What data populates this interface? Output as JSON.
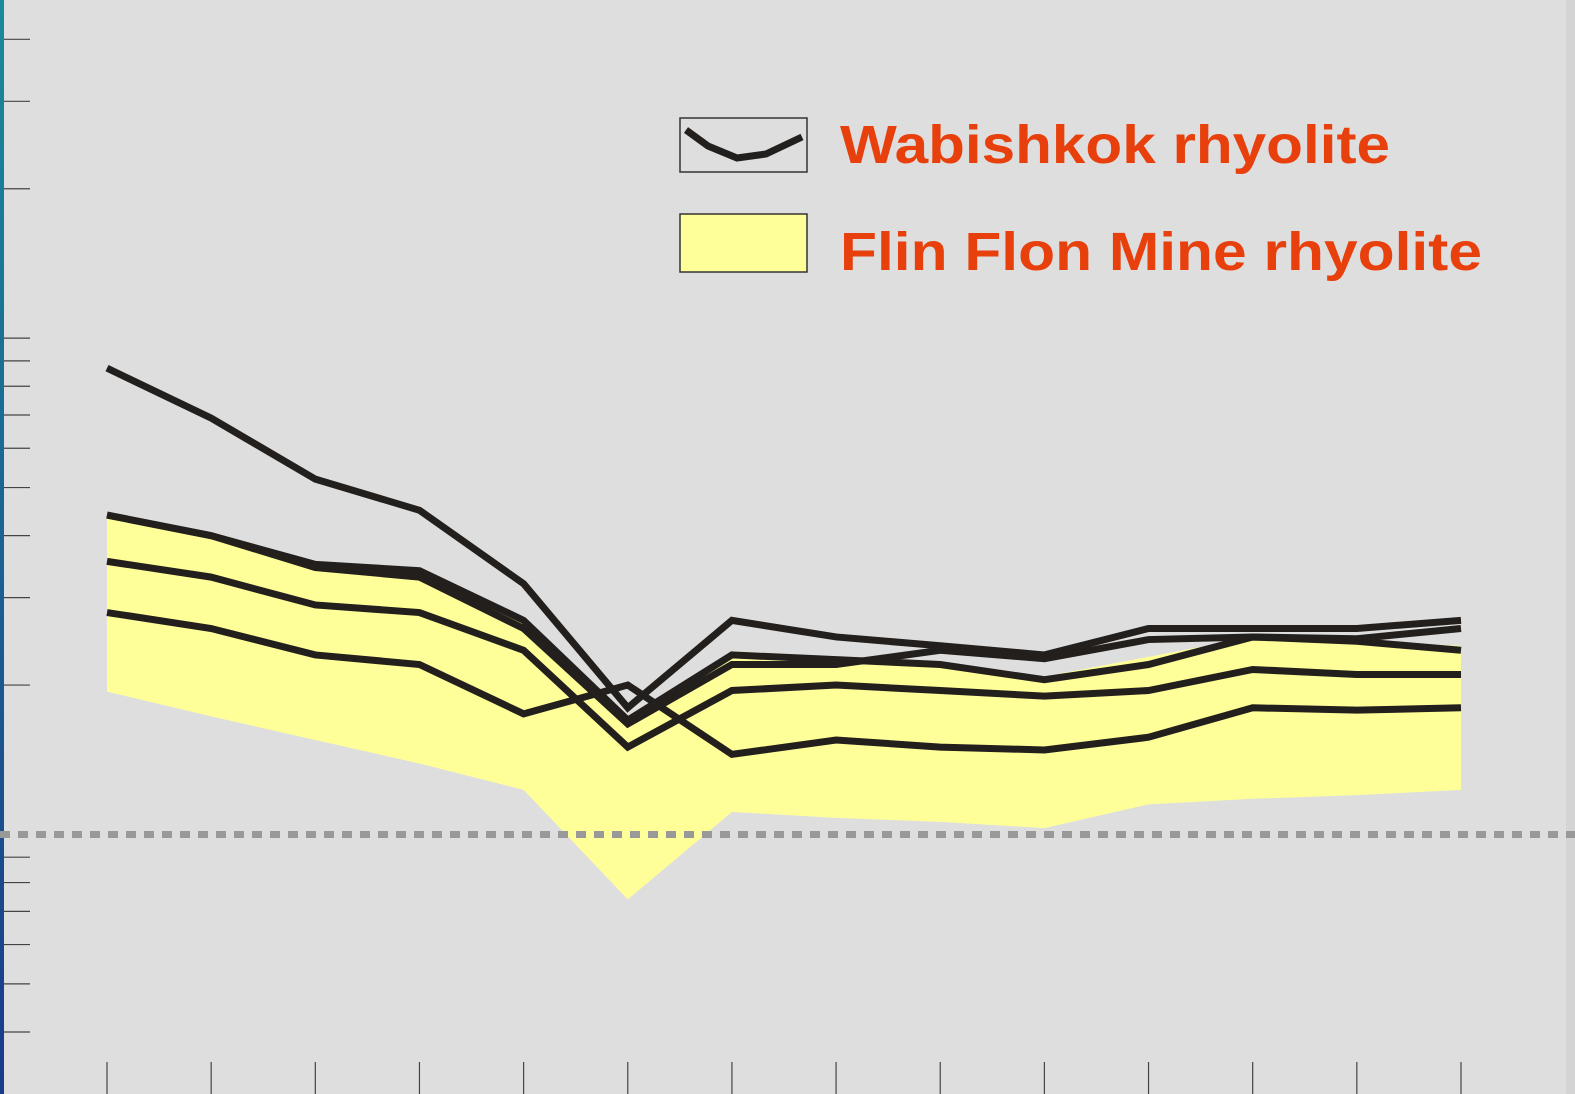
{
  "chart_data": {
    "type": "line",
    "categories": [
      null,
      null,
      null,
      null,
      null,
      null,
      null,
      null,
      null,
      null,
      null,
      null,
      null,
      null
    ],
    "ylim": [
      0.3,
      48
    ],
    "yticks": [
      0.4,
      0.5,
      0.6,
      0.7,
      0.8,
      0.9,
      2,
      3,
      4,
      5,
      6,
      7,
      8,
      9,
      10,
      20,
      30,
      40
    ],
    "log_scale": true,
    "reference_line": 1,
    "series": [
      {
        "name": "Wabishkok rhyolite",
        "color": "#231f1c",
        "samples": [
          [
            8.7,
            6.9,
            5.2,
            4.5,
            3.2,
            1.8,
            2.7,
            2.5,
            2.4,
            2.3,
            2.6,
            2.6,
            2.6,
            2.7
          ],
          [
            4.4,
            4.0,
            3.5,
            3.4,
            2.7,
            1.7,
            2.3,
            2.25,
            2.2,
            2.05,
            2.2,
            2.5,
            2.45,
            2.35
          ],
          [
            3.55,
            3.3,
            2.9,
            2.8,
            2.35,
            1.5,
            1.95,
            2.0,
            1.95,
            1.9,
            1.95,
            2.15,
            2.1,
            2.1
          ],
          [
            2.8,
            2.6,
            2.3,
            2.2,
            1.75,
            2.0,
            1.45,
            1.55,
            1.5,
            1.48,
            1.57,
            1.8,
            1.78,
            1.8
          ],
          [
            4.4,
            4.0,
            3.45,
            3.3,
            2.6,
            1.67,
            2.2,
            2.2,
            2.35,
            2.26,
            2.47,
            2.5,
            2.48,
            2.6
          ]
        ]
      },
      {
        "name": "Flin Flon Mine rhyolite",
        "color": "#ffff99",
        "upper": [
          4.4,
          4.0,
          3.5,
          3.36,
          2.66,
          1.67,
          2.34,
          2.28,
          2.2,
          2.08,
          2.28,
          2.5,
          2.45,
          2.4
        ],
        "lower": [
          1.94,
          1.73,
          1.55,
          1.39,
          1.23,
          0.74,
          1.11,
          1.08,
          1.06,
          1.03,
          1.15,
          1.18,
          1.2,
          1.23
        ]
      }
    ]
  }
}
